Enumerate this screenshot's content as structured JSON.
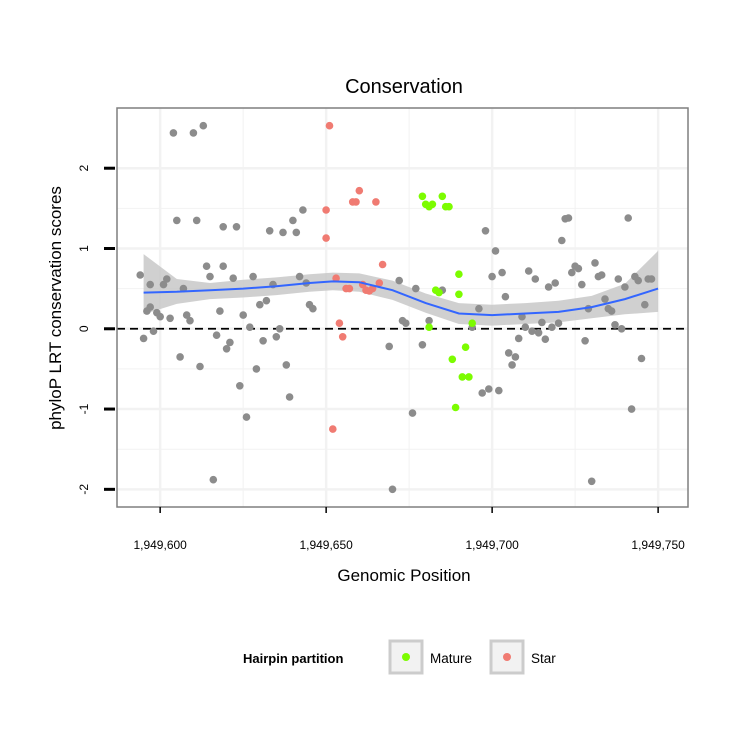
{
  "chart_data": {
    "type": "scatter",
    "title": "Conservation",
    "xlabel": "Genomic Position",
    "ylabel": "phyloP LRT conservation scores",
    "xlim": [
      1949587,
      1949759
    ],
    "ylim": [
      -2.22,
      2.75
    ],
    "x_ticks": [
      1949600,
      1949650,
      1949700,
      1949750
    ],
    "x_tick_labels": [
      "1,949,600",
      "1,949,650",
      "1,949,700",
      "1,949,750"
    ],
    "y_ticks": [
      -2,
      -1,
      0,
      1,
      2
    ],
    "y_tick_labels": [
      "-2",
      "-1",
      "0",
      "1",
      "2"
    ],
    "reference_line": {
      "y": 0,
      "style": "dashed"
    },
    "grid": true,
    "legend": {
      "title": "Hairpin partition",
      "position": "bottom",
      "entries": [
        {
          "label": "Mature",
          "color": "#7cfc00"
        },
        {
          "label": "Star",
          "color": "#f07b72"
        }
      ]
    },
    "colors": {
      "other": "#8c8c8c",
      "smooth": "#3366ff",
      "ribbon": "#c8c8c8",
      "panel_border": "#7f7f7f",
      "grid": "#f2f2f2"
    },
    "series": [
      {
        "name": "Other",
        "color": "#8c8c8c",
        "points": [
          [
            1949594,
            0.67
          ],
          [
            1949595,
            -0.12
          ],
          [
            1949596,
            0.22
          ],
          [
            1949597,
            0.27
          ],
          [
            1949597,
            0.55
          ],
          [
            1949598,
            -0.03
          ],
          [
            1949599,
            0.2
          ],
          [
            1949600,
            0.15
          ],
          [
            1949601,
            0.55
          ],
          [
            1949602,
            0.62
          ],
          [
            1949603,
            0.13
          ],
          [
            1949604,
            2.44
          ],
          [
            1949605,
            1.35
          ],
          [
            1949606,
            -0.35
          ],
          [
            1949607,
            0.5
          ],
          [
            1949608,
            0.17
          ],
          [
            1949609,
            0.1
          ],
          [
            1949610,
            2.44
          ],
          [
            1949611,
            1.35
          ],
          [
            1949612,
            -0.47
          ],
          [
            1949613,
            2.53
          ],
          [
            1949614,
            0.78
          ],
          [
            1949615,
            0.65
          ],
          [
            1949616,
            -1.88
          ],
          [
            1949617,
            -0.08
          ],
          [
            1949618,
            0.22
          ],
          [
            1949619,
            1.27
          ],
          [
            1949619,
            0.78
          ],
          [
            1949620,
            -0.25
          ],
          [
            1949621,
            -0.17
          ],
          [
            1949622,
            0.63
          ],
          [
            1949623,
            1.27
          ],
          [
            1949624,
            -0.71
          ],
          [
            1949625,
            0.17
          ],
          [
            1949626,
            -1.1
          ],
          [
            1949627,
            0.02
          ],
          [
            1949628,
            0.65
          ],
          [
            1949629,
            -0.5
          ],
          [
            1949630,
            0.3
          ],
          [
            1949631,
            -0.15
          ],
          [
            1949632,
            0.35
          ],
          [
            1949633,
            1.22
          ],
          [
            1949634,
            0.55
          ],
          [
            1949635,
            -0.1
          ],
          [
            1949636,
            0.0
          ],
          [
            1949637,
            1.2
          ],
          [
            1949638,
            -0.45
          ],
          [
            1949639,
            -0.85
          ],
          [
            1949640,
            1.35
          ],
          [
            1949641,
            1.2
          ],
          [
            1949642,
            0.65
          ],
          [
            1949643,
            1.48
          ],
          [
            1949644,
            0.57
          ],
          [
            1949645,
            0.3
          ],
          [
            1949646,
            0.25
          ],
          [
            1949669,
            -0.22
          ],
          [
            1949670,
            -2.0
          ],
          [
            1949672,
            0.6
          ],
          [
            1949673,
            0.1
          ],
          [
            1949674,
            0.07
          ],
          [
            1949676,
            -1.05
          ],
          [
            1949677,
            0.5
          ],
          [
            1949679,
            -0.2
          ],
          [
            1949681,
            0.1
          ],
          [
            1949685,
            0.48
          ],
          [
            1949694,
            0.02
          ],
          [
            1949696,
            0.25
          ],
          [
            1949697,
            -0.8
          ],
          [
            1949698,
            1.22
          ],
          [
            1949699,
            -0.75
          ],
          [
            1949700,
            0.65
          ],
          [
            1949701,
            0.97
          ],
          [
            1949702,
            -0.77
          ],
          [
            1949703,
            0.7
          ],
          [
            1949704,
            0.4
          ],
          [
            1949705,
            -0.3
          ],
          [
            1949706,
            -0.45
          ],
          [
            1949707,
            -0.35
          ],
          [
            1949708,
            -0.12
          ],
          [
            1949709,
            0.15
          ],
          [
            1949710,
            0.02
          ],
          [
            1949711,
            0.72
          ],
          [
            1949712,
            -0.03
          ],
          [
            1949713,
            0.62
          ],
          [
            1949714,
            -0.05
          ],
          [
            1949715,
            0.08
          ],
          [
            1949716,
            -0.13
          ],
          [
            1949717,
            0.52
          ],
          [
            1949718,
            0.02
          ],
          [
            1949719,
            0.57
          ],
          [
            1949720,
            0.07
          ],
          [
            1949721,
            1.1
          ],
          [
            1949722,
            1.37
          ],
          [
            1949723,
            1.38
          ],
          [
            1949724,
            0.7
          ],
          [
            1949725,
            0.78
          ],
          [
            1949726,
            0.75
          ],
          [
            1949727,
            0.55
          ],
          [
            1949728,
            -0.15
          ],
          [
            1949729,
            0.25
          ],
          [
            1949730,
            -1.9
          ],
          [
            1949731,
            0.82
          ],
          [
            1949732,
            0.65
          ],
          [
            1949733,
            0.67
          ],
          [
            1949734,
            0.37
          ],
          [
            1949735,
            0.25
          ],
          [
            1949736,
            0.22
          ],
          [
            1949737,
            0.05
          ],
          [
            1949738,
            0.62
          ],
          [
            1949739,
            0.0
          ],
          [
            1949740,
            0.52
          ],
          [
            1949741,
            1.38
          ],
          [
            1949742,
            -1.0
          ],
          [
            1949743,
            0.65
          ],
          [
            1949744,
            0.6
          ],
          [
            1949745,
            -0.37
          ],
          [
            1949746,
            0.3
          ],
          [
            1949747,
            0.62
          ],
          [
            1949748,
            0.62
          ]
        ]
      },
      {
        "name": "Mature",
        "color": "#7cfc00",
        "points": [
          [
            1949679,
            1.65
          ],
          [
            1949680,
            1.55
          ],
          [
            1949681,
            1.52
          ],
          [
            1949682,
            1.55
          ],
          [
            1949684,
            0.45
          ],
          [
            1949685,
            1.65
          ],
          [
            1949686,
            1.52
          ],
          [
            1949687,
            1.52
          ],
          [
            1949688,
            -0.38
          ],
          [
            1949689,
            -0.98
          ],
          [
            1949690,
            0.43
          ],
          [
            1949690,
            0.68
          ],
          [
            1949691,
            -0.6
          ],
          [
            1949692,
            -0.23
          ],
          [
            1949693,
            -0.6
          ],
          [
            1949694,
            0.07
          ],
          [
            1949681,
            0.02
          ],
          [
            1949683,
            0.48
          ]
        ]
      },
      {
        "name": "Star",
        "color": "#f07b72",
        "points": [
          [
            1949650,
            1.48
          ],
          [
            1949650,
            1.13
          ],
          [
            1949651,
            2.53
          ],
          [
            1949652,
            -1.25
          ],
          [
            1949653,
            0.63
          ],
          [
            1949654,
            0.07
          ],
          [
            1949655,
            -0.1
          ],
          [
            1949656,
            0.5
          ],
          [
            1949657,
            0.5
          ],
          [
            1949658,
            1.58
          ],
          [
            1949659,
            1.58
          ],
          [
            1949660,
            1.72
          ],
          [
            1949661,
            0.55
          ],
          [
            1949662,
            0.48
          ],
          [
            1949663,
            0.47
          ],
          [
            1949664,
            0.5
          ],
          [
            1949665,
            1.58
          ],
          [
            1949666,
            0.57
          ],
          [
            1949667,
            0.8
          ]
        ]
      }
    ],
    "smooth_line": {
      "x": [
        1949595,
        1949605,
        1949615,
        1949625,
        1949635,
        1949645,
        1949652,
        1949660,
        1949670,
        1949680,
        1949690,
        1949700,
        1949710,
        1949720,
        1949730,
        1949740,
        1949750
      ],
      "y": [
        0.45,
        0.46,
        0.48,
        0.5,
        0.53,
        0.57,
        0.59,
        0.58,
        0.48,
        0.32,
        0.19,
        0.17,
        0.19,
        0.21,
        0.27,
        0.37,
        0.5
      ],
      "ci_low": [
        0.18,
        0.31,
        0.37,
        0.39,
        0.42,
        0.46,
        0.48,
        0.46,
        0.36,
        0.2,
        0.06,
        0.04,
        0.06,
        0.08,
        0.13,
        0.18,
        0.21
      ],
      "ci_high": [
        0.93,
        0.62,
        0.57,
        0.61,
        0.64,
        0.68,
        0.7,
        0.69,
        0.6,
        0.44,
        0.32,
        0.3,
        0.32,
        0.35,
        0.41,
        0.56,
        0.97
      ]
    }
  }
}
